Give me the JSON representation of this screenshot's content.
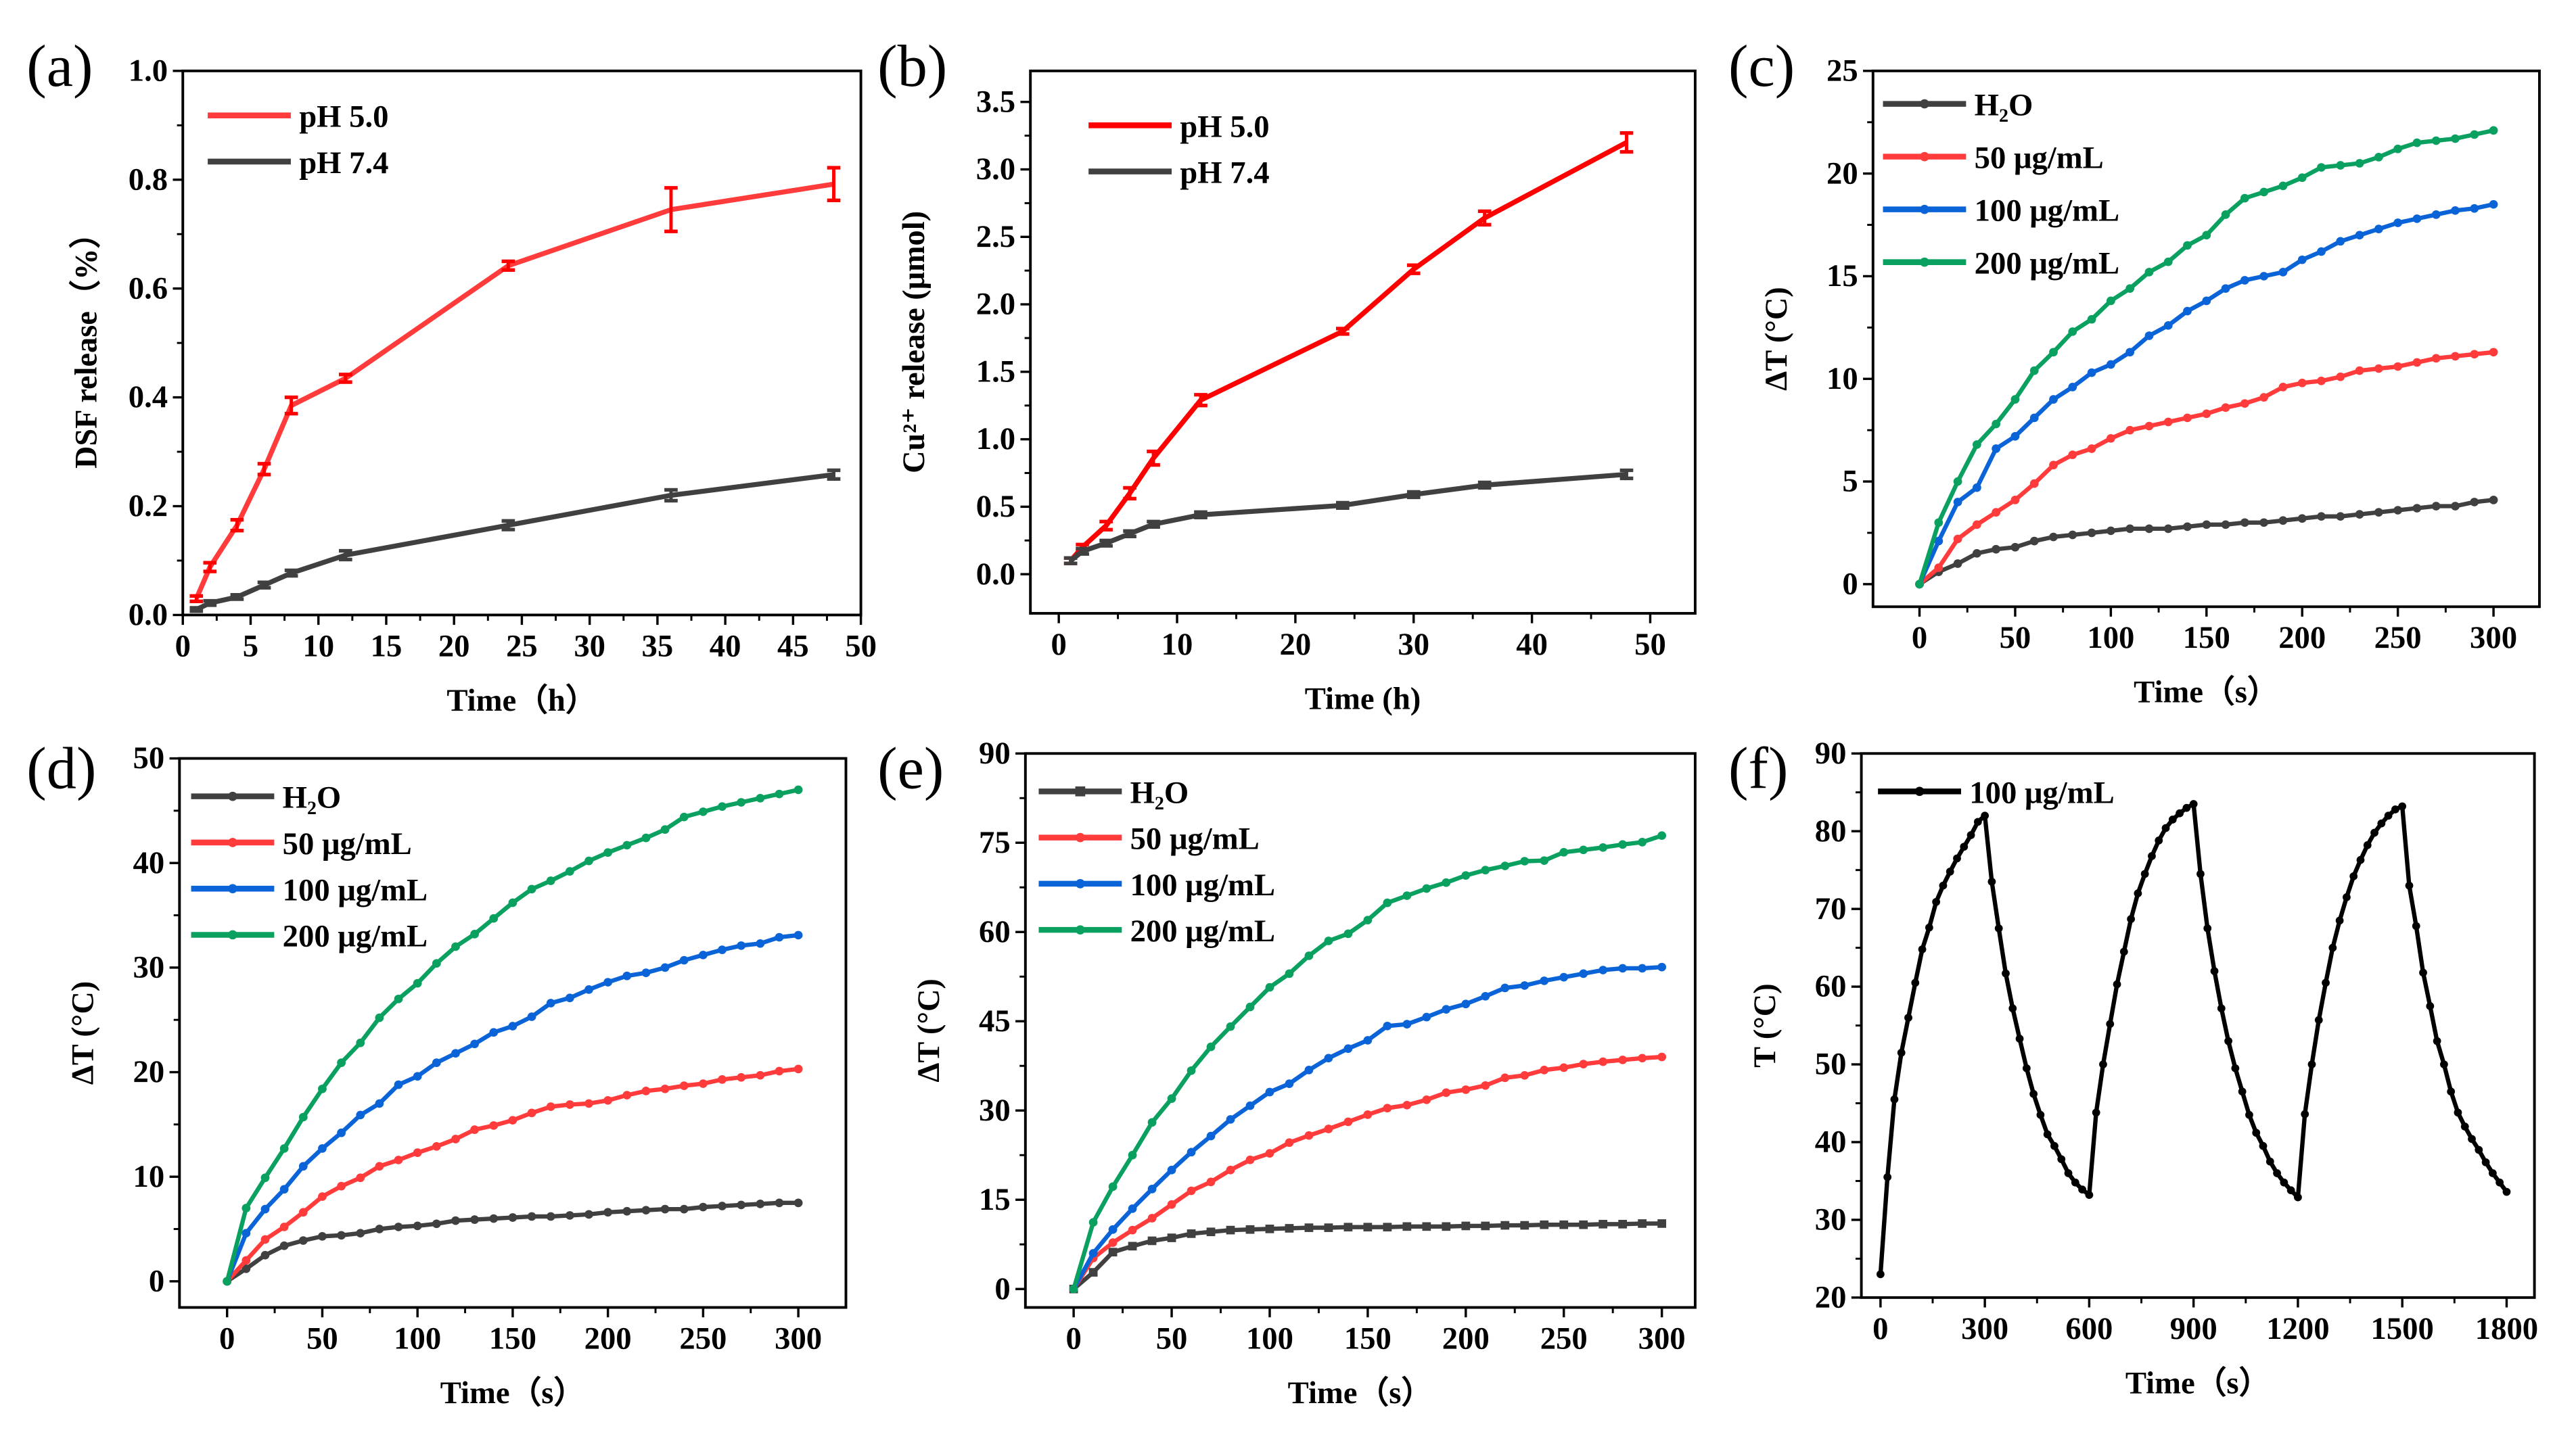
{
  "chart_data": [
    {
      "panel_label": "(a)",
      "type": "line",
      "xlabel": "Time（h）",
      "ylabel": "DSF release（%）",
      "xlim": [
        0,
        50
      ],
      "ylim": [
        0,
        1.0
      ],
      "xticks": [
        "0",
        "5",
        "10",
        "15",
        "20",
        "25",
        "30",
        "35",
        "40",
        "45",
        "50"
      ],
      "yticks": [
        "0.0",
        "0.2",
        "0.4",
        "0.6",
        "0.8",
        "1.0"
      ],
      "legend_position": "top-left",
      "x": [
        1,
        2,
        4,
        6,
        8,
        12,
        24,
        36,
        48
      ],
      "series": [
        {
          "name": "pH 5.0",
          "color": "#ff3b3b",
          "errcolor": "#ff0000",
          "marker": "none",
          "y": [
            0.03,
            0.088,
            0.165,
            0.268,
            0.385,
            0.435,
            0.642,
            0.745,
            0.792
          ],
          "yerr": [
            0.005,
            0.008,
            0.01,
            0.01,
            0.015,
            0.007,
            0.008,
            0.04,
            0.03
          ]
        },
        {
          "name": "pH 7.4",
          "color": "#404040",
          "errcolor": "#404040",
          "marker": "none",
          "y": [
            0.01,
            0.022,
            0.033,
            0.055,
            0.077,
            0.11,
            0.165,
            0.22,
            0.258
          ],
          "yerr": [
            0.003,
            0.004,
            0.004,
            0.005,
            0.005,
            0.008,
            0.008,
            0.01,
            0.008
          ]
        }
      ]
    },
    {
      "panel_label": "(b)",
      "type": "line",
      "xlabel": "Time (h)",
      "ylabel": "Cu²⁺ release (μmol)",
      "xlim": [
        -2.4,
        53.8
      ],
      "ylim": [
        -0.29,
        3.73
      ],
      "xticks": [
        "0",
        "10",
        "20",
        "30",
        "40",
        "50"
      ],
      "yticks": [
        "0.0",
        "0.5",
        "1.0",
        "1.5",
        "2.0",
        "2.5",
        "3.0",
        "3.5"
      ],
      "legend_position": "top-left",
      "x": [
        1,
        2,
        4,
        6,
        8,
        12,
        24,
        30,
        36,
        48
      ],
      "series": [
        {
          "name": "pH 5.0",
          "color": "#ff0000",
          "errcolor": "#ff0000",
          "marker": "none",
          "y": [
            0.1,
            0.2,
            0.36,
            0.6,
            0.86,
            1.29,
            1.8,
            2.26,
            2.64,
            3.2
          ],
          "yerr": [
            0.02,
            0.02,
            0.03,
            0.04,
            0.05,
            0.04,
            0.02,
            0.03,
            0.05,
            0.07
          ]
        },
        {
          "name": "pH 7.4",
          "color": "#404040",
          "errcolor": "#404040",
          "marker": "none",
          "y": [
            0.1,
            0.17,
            0.23,
            0.3,
            0.37,
            0.44,
            0.51,
            0.59,
            0.66,
            0.74
          ],
          "yerr": [
            0.02,
            0.02,
            0.02,
            0.02,
            0.02,
            0.02,
            0.02,
            0.02,
            0.02,
            0.03
          ]
        }
      ]
    },
    {
      "panel_label": "(c)",
      "type": "line",
      "xlabel": "Time（s）",
      "ylabel": "ΔT (°C)",
      "xlim": [
        -24.3,
        324
      ],
      "ylim": [
        -1.1,
        25
      ],
      "xticks": [
        "0",
        "50",
        "100",
        "150",
        "200",
        "250",
        "300"
      ],
      "yticks": [
        "0",
        "5",
        "10",
        "15",
        "20",
        "25"
      ],
      "legend_position": "top-left",
      "x": [
        0,
        10,
        20,
        30,
        40,
        50,
        60,
        70,
        80,
        90,
        100,
        110,
        120,
        130,
        140,
        150,
        160,
        170,
        180,
        190,
        200,
        210,
        220,
        230,
        240,
        250,
        260,
        270,
        280,
        290,
        300
      ],
      "series": [
        {
          "name": "H₂O",
          "color": "#404040",
          "marker": "circle",
          "y": [
            0,
            0.6,
            1.0,
            1.5,
            1.7,
            1.8,
            2.1,
            2.3,
            2.4,
            2.5,
            2.6,
            2.7,
            2.7,
            2.7,
            2.8,
            2.9,
            2.9,
            3.0,
            3.0,
            3.1,
            3.2,
            3.3,
            3.3,
            3.4,
            3.5,
            3.6,
            3.7,
            3.8,
            3.8,
            4.0,
            4.1
          ]
        },
        {
          "name": "50 μg/mL",
          "color": "#ff3b3b",
          "marker": "circle",
          "y": [
            0,
            0.8,
            2.2,
            2.9,
            3.5,
            4.1,
            4.9,
            5.8,
            6.3,
            6.6,
            7.1,
            7.5,
            7.7,
            7.9,
            8.1,
            8.3,
            8.6,
            8.8,
            9.1,
            9.6,
            9.8,
            9.9,
            10.1,
            10.4,
            10.5,
            10.6,
            10.8,
            11.0,
            11.1,
            11.2,
            11.3
          ]
        },
        {
          "name": "100 μg/mL",
          "color": "#0a64d8",
          "marker": "circle",
          "y": [
            0,
            2.1,
            4.0,
            4.7,
            6.6,
            7.2,
            8.1,
            9.0,
            9.6,
            10.3,
            10.7,
            11.3,
            12.1,
            12.6,
            13.3,
            13.8,
            14.4,
            14.8,
            15.0,
            15.2,
            15.8,
            16.2,
            16.7,
            17.0,
            17.3,
            17.6,
            17.8,
            18.0,
            18.2,
            18.3,
            18.5
          ]
        },
        {
          "name": "200 μg/mL",
          "color": "#0aa060",
          "marker": "circle",
          "y": [
            0,
            3.0,
            5.0,
            6.8,
            7.8,
            9.0,
            10.4,
            11.3,
            12.3,
            12.9,
            13.8,
            14.4,
            15.2,
            15.7,
            16.5,
            17.0,
            18.0,
            18.8,
            19.1,
            19.4,
            19.8,
            20.3,
            20.4,
            20.5,
            20.8,
            21.2,
            21.5,
            21.6,
            21.7,
            21.9,
            22.1
          ]
        }
      ]
    },
    {
      "panel_label": "(d)",
      "type": "line",
      "xlabel": "Time（s）",
      "ylabel": "ΔT (°C)",
      "xlim": [
        -25,
        325
      ],
      "ylim": [
        -2.5,
        50
      ],
      "xticks": [
        "0",
        "50",
        "100",
        "150",
        "200",
        "250",
        "300"
      ],
      "yticks": [
        "0",
        "10",
        "20",
        "30",
        "40",
        "50"
      ],
      "legend_position": "top-left",
      "x": [
        0,
        10,
        20,
        30,
        40,
        50,
        60,
        70,
        80,
        90,
        100,
        110,
        120,
        130,
        140,
        150,
        160,
        170,
        180,
        190,
        200,
        210,
        220,
        230,
        240,
        250,
        260,
        270,
        280,
        290,
        300
      ],
      "series": [
        {
          "name": "H₂O",
          "color": "#404040",
          "marker": "circle",
          "y": [
            0,
            1.2,
            2.5,
            3.4,
            3.9,
            4.3,
            4.4,
            4.6,
            5.0,
            5.2,
            5.3,
            5.5,
            5.8,
            5.9,
            6.0,
            6.1,
            6.2,
            6.2,
            6.3,
            6.4,
            6.6,
            6.7,
            6.8,
            6.9,
            6.9,
            7.1,
            7.2,
            7.3,
            7.4,
            7.5,
            7.5
          ]
        },
        {
          "name": "50 μg/mL",
          "color": "#ff3b3b",
          "marker": "circle",
          "y": [
            0,
            2.0,
            4.0,
            5.2,
            6.6,
            8.1,
            9.1,
            9.9,
            11.0,
            11.6,
            12.3,
            12.9,
            13.6,
            14.5,
            14.9,
            15.4,
            16.1,
            16.7,
            16.9,
            17.0,
            17.3,
            17.8,
            18.2,
            18.4,
            18.7,
            18.9,
            19.3,
            19.5,
            19.7,
            20.1,
            20.3
          ]
        },
        {
          "name": "100 μg/mL",
          "color": "#0a64d8",
          "marker": "circle",
          "y": [
            0,
            4.6,
            6.9,
            8.8,
            11.0,
            12.7,
            14.2,
            15.9,
            17.0,
            18.8,
            19.6,
            20.9,
            21.8,
            22.7,
            23.8,
            24.4,
            25.3,
            26.6,
            27.1,
            27.9,
            28.6,
            29.2,
            29.5,
            30.0,
            30.7,
            31.2,
            31.7,
            32.1,
            32.3,
            32.9,
            33.1
          ]
        },
        {
          "name": "200 μg/mL",
          "color": "#0aa060",
          "marker": "circle",
          "y": [
            0,
            7.0,
            9.9,
            12.7,
            15.7,
            18.4,
            20.9,
            22.8,
            25.2,
            27.0,
            28.5,
            30.4,
            32.0,
            33.2,
            34.7,
            36.2,
            37.5,
            38.3,
            39.2,
            40.2,
            41.0,
            41.7,
            42.4,
            43.2,
            44.4,
            44.9,
            45.4,
            45.8,
            46.2,
            46.6,
            47.0
          ]
        }
      ]
    },
    {
      "panel_label": "(e)",
      "type": "line",
      "xlabel": "Time（s）",
      "ylabel": "ΔT (°C)",
      "xlim": [
        -24.6,
        317
      ],
      "ylim": [
        -3.1,
        90
      ],
      "xticks": [
        "0",
        "50",
        "100",
        "150",
        "200",
        "250",
        "300"
      ],
      "yticks": [
        "0",
        "15",
        "30",
        "45",
        "60",
        "75",
        "90"
      ],
      "legend_position": "top-left",
      "x": [
        0,
        10,
        20,
        30,
        40,
        50,
        60,
        70,
        80,
        90,
        100,
        110,
        120,
        130,
        140,
        150,
        160,
        170,
        180,
        190,
        200,
        210,
        220,
        230,
        240,
        250,
        260,
        270,
        280,
        290,
        300
      ],
      "series": [
        {
          "name": "H₂O",
          "color": "#404040",
          "marker": "square",
          "y": [
            0,
            2.8,
            6.2,
            7.2,
            8.1,
            8.6,
            9.3,
            9.6,
            9.9,
            10.0,
            10.1,
            10.2,
            10.3,
            10.3,
            10.4,
            10.4,
            10.4,
            10.5,
            10.5,
            10.5,
            10.6,
            10.6,
            10.7,
            10.7,
            10.8,
            10.8,
            10.8,
            10.9,
            10.9,
            11.0,
            11.0
          ]
        },
        {
          "name": "50 μg/mL",
          "color": "#ff3b3b",
          "marker": "circle",
          "y": [
            0,
            5.2,
            7.8,
            9.9,
            11.9,
            14.2,
            16.5,
            18.0,
            20.0,
            21.7,
            22.8,
            24.6,
            25.8,
            26.9,
            28.1,
            29.3,
            30.4,
            30.9,
            31.8,
            33.0,
            33.5,
            34.2,
            35.5,
            35.9,
            36.8,
            37.2,
            37.8,
            38.2,
            38.5,
            38.8,
            39.0
          ]
        },
        {
          "name": "100 μg/mL",
          "color": "#0a64d8",
          "marker": "circle",
          "y": [
            0,
            6.0,
            10.0,
            13.5,
            16.8,
            20.0,
            23.0,
            25.7,
            28.5,
            30.8,
            33.1,
            34.5,
            36.8,
            38.8,
            40.4,
            41.8,
            44.2,
            44.5,
            45.7,
            47.0,
            47.9,
            49.2,
            50.6,
            51.0,
            51.8,
            52.4,
            53.0,
            53.6,
            53.9,
            53.9,
            54.1
          ]
        },
        {
          "name": "200 μg/mL",
          "color": "#0aa060",
          "marker": "circle",
          "y": [
            0,
            11.2,
            17.2,
            22.5,
            28.0,
            32.0,
            36.7,
            40.7,
            44.1,
            47.4,
            50.7,
            53.0,
            56.0,
            58.5,
            59.7,
            62.0,
            64.9,
            66.1,
            67.3,
            68.3,
            69.5,
            70.4,
            71.1,
            71.9,
            72.0,
            73.4,
            73.8,
            74.2,
            74.7,
            75.1,
            76.2
          ]
        }
      ]
    },
    {
      "panel_label": "(f)",
      "type": "line",
      "xlabel": "Time（s）",
      "ylabel": "T (°C)",
      "xlim": [
        -55,
        1880
      ],
      "ylim": [
        20,
        90
      ],
      "xticks": [
        "0",
        "300",
        "600",
        "900",
        "1200",
        "1500",
        "1800"
      ],
      "yticks": [
        "20",
        "30",
        "40",
        "50",
        "60",
        "70",
        "80",
        "90"
      ],
      "legend_position": "top-left",
      "x": [
        0,
        20,
        40,
        60,
        80,
        100,
        120,
        140,
        160,
        180,
        200,
        220,
        240,
        260,
        280,
        300,
        320,
        340,
        360,
        380,
        400,
        420,
        440,
        460,
        480,
        500,
        520,
        540,
        560,
        580,
        600,
        620,
        640,
        660,
        680,
        700,
        720,
        740,
        760,
        780,
        800,
        820,
        840,
        860,
        880,
        900,
        920,
        940,
        960,
        980,
        1000,
        1020,
        1040,
        1060,
        1080,
        1100,
        1120,
        1140,
        1160,
        1180,
        1200,
        1220,
        1240,
        1260,
        1280,
        1300,
        1320,
        1340,
        1360,
        1380,
        1400,
        1420,
        1440,
        1460,
        1480,
        1500,
        1520,
        1540,
        1560,
        1580,
        1600,
        1620,
        1640,
        1660,
        1680,
        1700,
        1720,
        1740,
        1760,
        1780,
        1800
      ],
      "series": [
        {
          "name": "100 μg/mL",
          "color": "#000000",
          "marker": "circle",
          "y": [
            23,
            35.5,
            45.5,
            51.5,
            56,
            60.5,
            64.8,
            67.6,
            70.9,
            73,
            74.8,
            76.5,
            78,
            79.5,
            81.2,
            82,
            73.5,
            67.5,
            61.7,
            57.2,
            53.3,
            49.5,
            46.2,
            43.5,
            41,
            39.5,
            37.8,
            36,
            34.8,
            33.9,
            33.2,
            43.8,
            50,
            55.2,
            60.3,
            64.5,
            68.7,
            72,
            74.5,
            76.8,
            78.8,
            80.4,
            81.5,
            82.3,
            83,
            83.5,
            74.5,
            67.5,
            62,
            57.2,
            53,
            49.5,
            46.5,
            43.5,
            41.2,
            39.5,
            37.5,
            36,
            34.8,
            33.8,
            32.9,
            43.6,
            50,
            55.7,
            60.5,
            65,
            68.5,
            71.5,
            74.2,
            76.3,
            78.2,
            79.8,
            81,
            82,
            82.8,
            83.2,
            73,
            67.8,
            61.8,
            57.5,
            53,
            50,
            46.5,
            43.8,
            42,
            40.4,
            39,
            37.4,
            36,
            34.8,
            33.6
          ]
        }
      ]
    }
  ]
}
